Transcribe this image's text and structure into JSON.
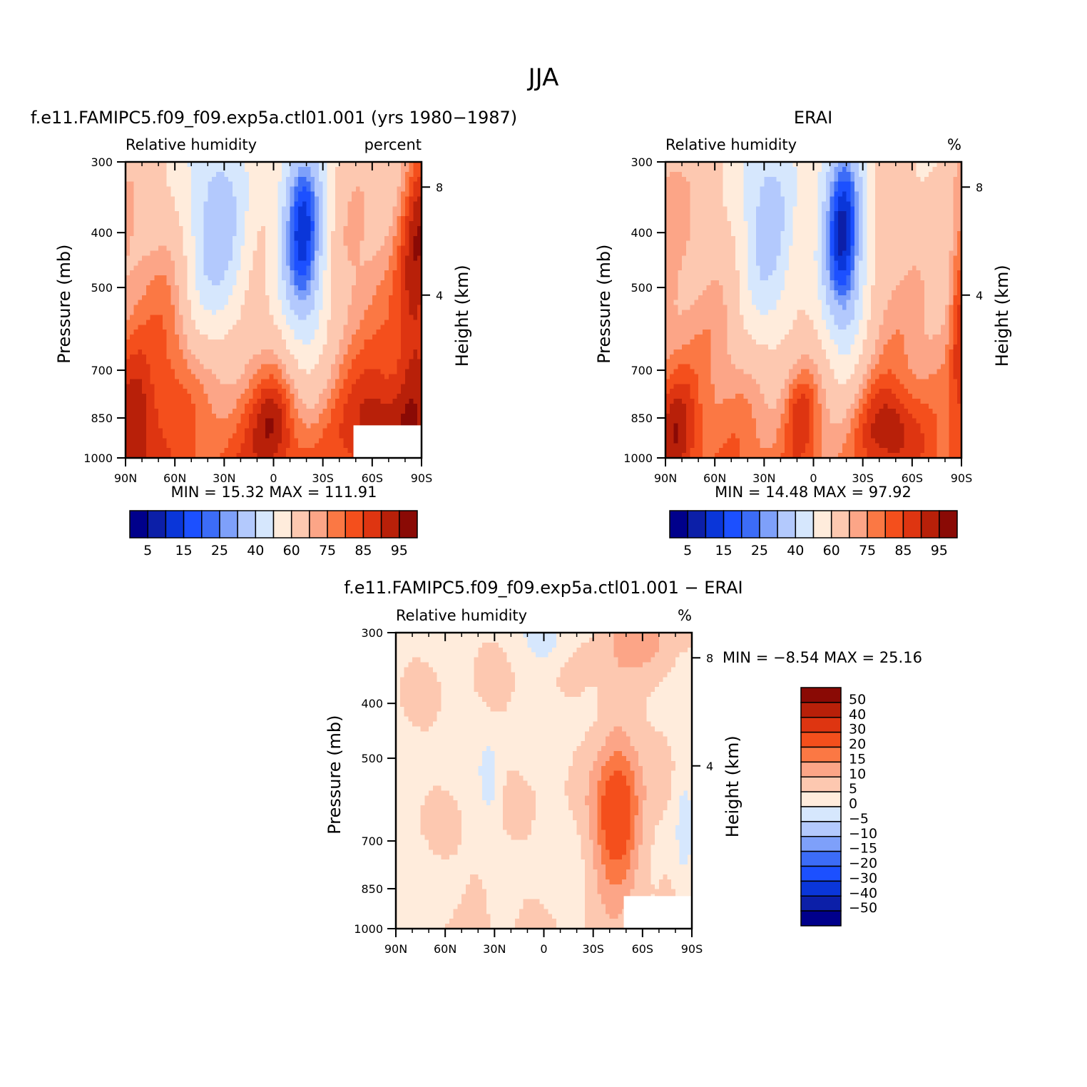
{
  "title": "JJA",
  "chart_data": [
    {
      "type": "heatmap",
      "title": "f.e11.FAMIPC5.f09_f09.exp5a.ctl01.001 (yrs 1980−1987)",
      "left_label": "Relative humidity",
      "right_label": "percent",
      "ylabel": "Pressure (mb)",
      "y2label": "Height (km)",
      "y_ticks": [
        "300",
        "400",
        "500",
        "700",
        "850",
        "1000"
      ],
      "y2_ticks": [
        "8",
        "4"
      ],
      "x_ticks": [
        "90N",
        "60N",
        "30N",
        "0",
        "30S",
        "60S",
        "90S"
      ],
      "xlim": [
        -90,
        90
      ],
      "ylim": [
        1000,
        300
      ],
      "y_scale": "log",
      "stats_text": "MIN =   15.32   MAX =  111.91",
      "min": 15.32,
      "max": 111.91,
      "colorbar": {
        "orientation": "horizontal",
        "labels": [
          "5",
          "15",
          "25",
          "40",
          "60",
          "75",
          "85",
          "95"
        ],
        "levels": [
          5,
          10,
          15,
          20,
          25,
          30,
          40,
          50,
          60,
          70,
          75,
          80,
          85,
          90,
          95
        ],
        "colors": [
          "#00008b",
          "#0c1fa8",
          "#0a36d9",
          "#1c50ff",
          "#3c6cf7",
          "#7ea0fa",
          "#b3c9fd",
          "#d6e7fd",
          "#ffecdc",
          "#fdc8b0",
          "#fca587",
          "#fb7844",
          "#f44f1c",
          "#de3511",
          "#b82009",
          "#8a0a05"
        ]
      }
    },
    {
      "type": "heatmap",
      "title": "ERAI",
      "left_label": "Relative humidity",
      "right_label": "%",
      "ylabel": "Pressure (mb)",
      "y2label": "Height (km)",
      "y_ticks": [
        "300",
        "400",
        "500",
        "700",
        "850",
        "1000"
      ],
      "y2_ticks": [
        "8",
        "4"
      ],
      "x_ticks": [
        "90N",
        "60N",
        "30N",
        "0",
        "30S",
        "60S",
        "90S"
      ],
      "xlim": [
        -90,
        90
      ],
      "ylim": [
        1000,
        300
      ],
      "y_scale": "log",
      "stats_text": "MIN =   14.48   MAX =   97.92",
      "min": 14.48,
      "max": 97.92,
      "colorbar": {
        "orientation": "horizontal",
        "labels": [
          "5",
          "15",
          "25",
          "40",
          "60",
          "75",
          "85",
          "95"
        ],
        "levels": [
          5,
          10,
          15,
          20,
          25,
          30,
          40,
          50,
          60,
          70,
          75,
          80,
          85,
          90,
          95
        ],
        "colors": [
          "#00008b",
          "#0c1fa8",
          "#0a36d9",
          "#1c50ff",
          "#3c6cf7",
          "#7ea0fa",
          "#b3c9fd",
          "#d6e7fd",
          "#ffecdc",
          "#fdc8b0",
          "#fca587",
          "#fb7844",
          "#f44f1c",
          "#de3511",
          "#b82009",
          "#8a0a05"
        ]
      }
    },
    {
      "type": "heatmap",
      "title": "f.e11.FAMIPC5.f09_f09.exp5a.ctl01.001 − ERAI",
      "left_label": "Relative humidity",
      "right_label": "%",
      "ylabel": "Pressure (mb)",
      "y2label": "Height (km)",
      "y_ticks": [
        "300",
        "400",
        "500",
        "700",
        "850",
        "1000"
      ],
      "y2_ticks": [
        "8",
        "4"
      ],
      "x_ticks": [
        "90N",
        "60N",
        "30N",
        "0",
        "30S",
        "60S",
        "90S"
      ],
      "xlim": [
        -90,
        90
      ],
      "ylim": [
        1000,
        300
      ],
      "y_scale": "log",
      "stats_text": "MIN =   −8.54   MAX =   25.16",
      "min": -8.54,
      "max": 25.16,
      "colorbar": {
        "orientation": "vertical",
        "labels": [
          "50",
          "40",
          "30",
          "20",
          "15",
          "10",
          "5",
          "0",
          "−5",
          "−10",
          "−15",
          "−20",
          "−30",
          "−40",
          "−50"
        ],
        "levels": [
          -50,
          -40,
          -30,
          -20,
          -15,
          -10,
          -5,
          0,
          5,
          10,
          15,
          20,
          30,
          40,
          50
        ],
        "colors": [
          "#00008b",
          "#0c1fa8",
          "#0a36d9",
          "#1c50ff",
          "#3c6cf7",
          "#7ea0fa",
          "#b3c9fd",
          "#d6e7fd",
          "#ffecdc",
          "#fdc8b0",
          "#fca587",
          "#fb7844",
          "#f44f1c",
          "#de3511",
          "#b82009",
          "#8a0a05"
        ]
      }
    }
  ]
}
